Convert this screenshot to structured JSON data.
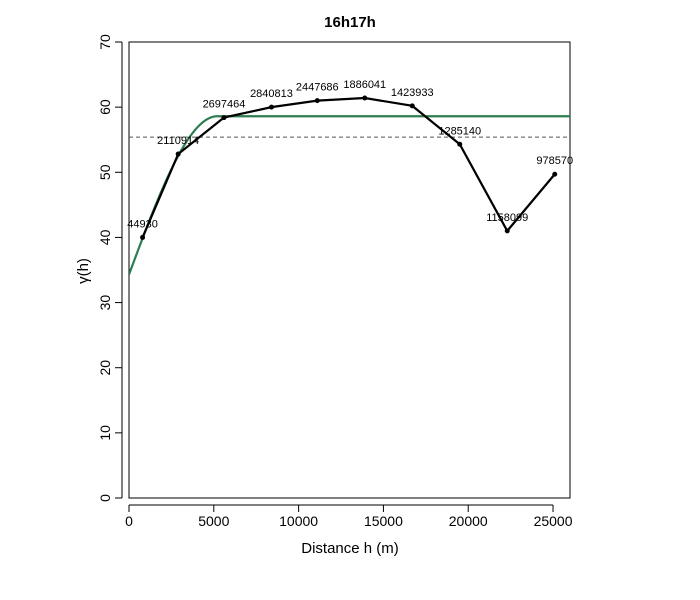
{
  "chart_data": {
    "type": "line",
    "title": "16h17h",
    "xlabel": "Distance h (m)",
    "ylabel": "γ(h)",
    "xlim": [
      0,
      26000
    ],
    "ylim": [
      0,
      70
    ],
    "xticks": [
      0,
      5000,
      10000,
      15000,
      20000,
      25000
    ],
    "yticks": [
      0,
      10,
      20,
      30,
      40,
      50,
      60,
      70
    ],
    "grid": false,
    "legend": "none",
    "series": [
      {
        "kind": "empirical",
        "color": "#000000",
        "points": [
          {
            "x": 800,
            "y": 40.0,
            "label": "44930"
          },
          {
            "x": 2900,
            "y": 52.8,
            "label": "2110914"
          },
          {
            "x": 5600,
            "y": 58.4,
            "label": "2697464"
          },
          {
            "x": 8400,
            "y": 60.0,
            "label": "2840813"
          },
          {
            "x": 11100,
            "y": 61.0,
            "label": "2447686"
          },
          {
            "x": 13900,
            "y": 61.4,
            "label": "1886041"
          },
          {
            "x": 16700,
            "y": 60.2,
            "label": "1423933"
          },
          {
            "x": 19500,
            "y": 54.3,
            "label": "1285140"
          },
          {
            "x": 22300,
            "y": 41.0,
            "label": "1158099"
          },
          {
            "x": 25100,
            "y": 49.7,
            "label": "978570"
          }
        ]
      },
      {
        "kind": "fitted-model",
        "color": "#2e7d4f",
        "nugget": 34.3,
        "sill": 58.6,
        "range": 5200
      }
    ],
    "reference_line": {
      "y": 55.4,
      "style": "dashed",
      "color": "#555555"
    }
  }
}
